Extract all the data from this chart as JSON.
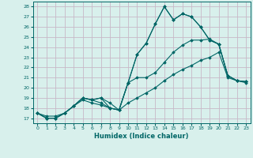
{
  "title": "",
  "xlabel": "Humidex (Indice chaleur)",
  "background_color": "#d8f0ec",
  "grid_color": "#c8b8c8",
  "line_color": "#006666",
  "xlim": [
    -0.5,
    23.5
  ],
  "ylim": [
    16.5,
    28.5
  ],
  "xticks": [
    0,
    1,
    2,
    3,
    4,
    5,
    6,
    7,
    8,
    9,
    10,
    11,
    12,
    13,
    14,
    15,
    16,
    17,
    18,
    19,
    20,
    21,
    22,
    23
  ],
  "yticks": [
    17,
    18,
    19,
    20,
    21,
    22,
    23,
    24,
    25,
    26,
    27,
    28
  ],
  "series": [
    [
      17.5,
      17.0,
      17.0,
      17.5,
      18.2,
      19.0,
      18.8,
      19.0,
      18.5,
      17.8,
      20.5,
      23.3,
      24.4,
      26.3,
      28.0,
      26.7,
      27.3,
      27.0,
      26.0,
      24.7,
      24.3,
      21.2,
      20.7,
      20.6
    ],
    [
      17.5,
      17.0,
      17.0,
      17.5,
      18.2,
      19.0,
      18.8,
      19.0,
      18.0,
      17.8,
      20.5,
      23.3,
      24.4,
      26.3,
      28.0,
      26.7,
      27.3,
      27.0,
      26.0,
      24.7,
      24.3,
      21.2,
      20.7,
      20.6
    ],
    [
      17.5,
      17.0,
      17.0,
      17.5,
      18.2,
      19.0,
      18.8,
      18.5,
      18.0,
      17.8,
      20.5,
      21.0,
      21.0,
      21.5,
      22.5,
      23.5,
      24.2,
      24.7,
      24.7,
      24.8,
      24.3,
      21.2,
      20.7,
      20.6
    ],
    [
      17.5,
      17.2,
      17.2,
      17.5,
      18.2,
      18.8,
      18.5,
      18.3,
      18.0,
      17.8,
      18.5,
      19.0,
      19.5,
      20.0,
      20.7,
      21.3,
      21.8,
      22.2,
      22.7,
      23.0,
      23.5,
      21.0,
      20.7,
      20.5
    ]
  ]
}
